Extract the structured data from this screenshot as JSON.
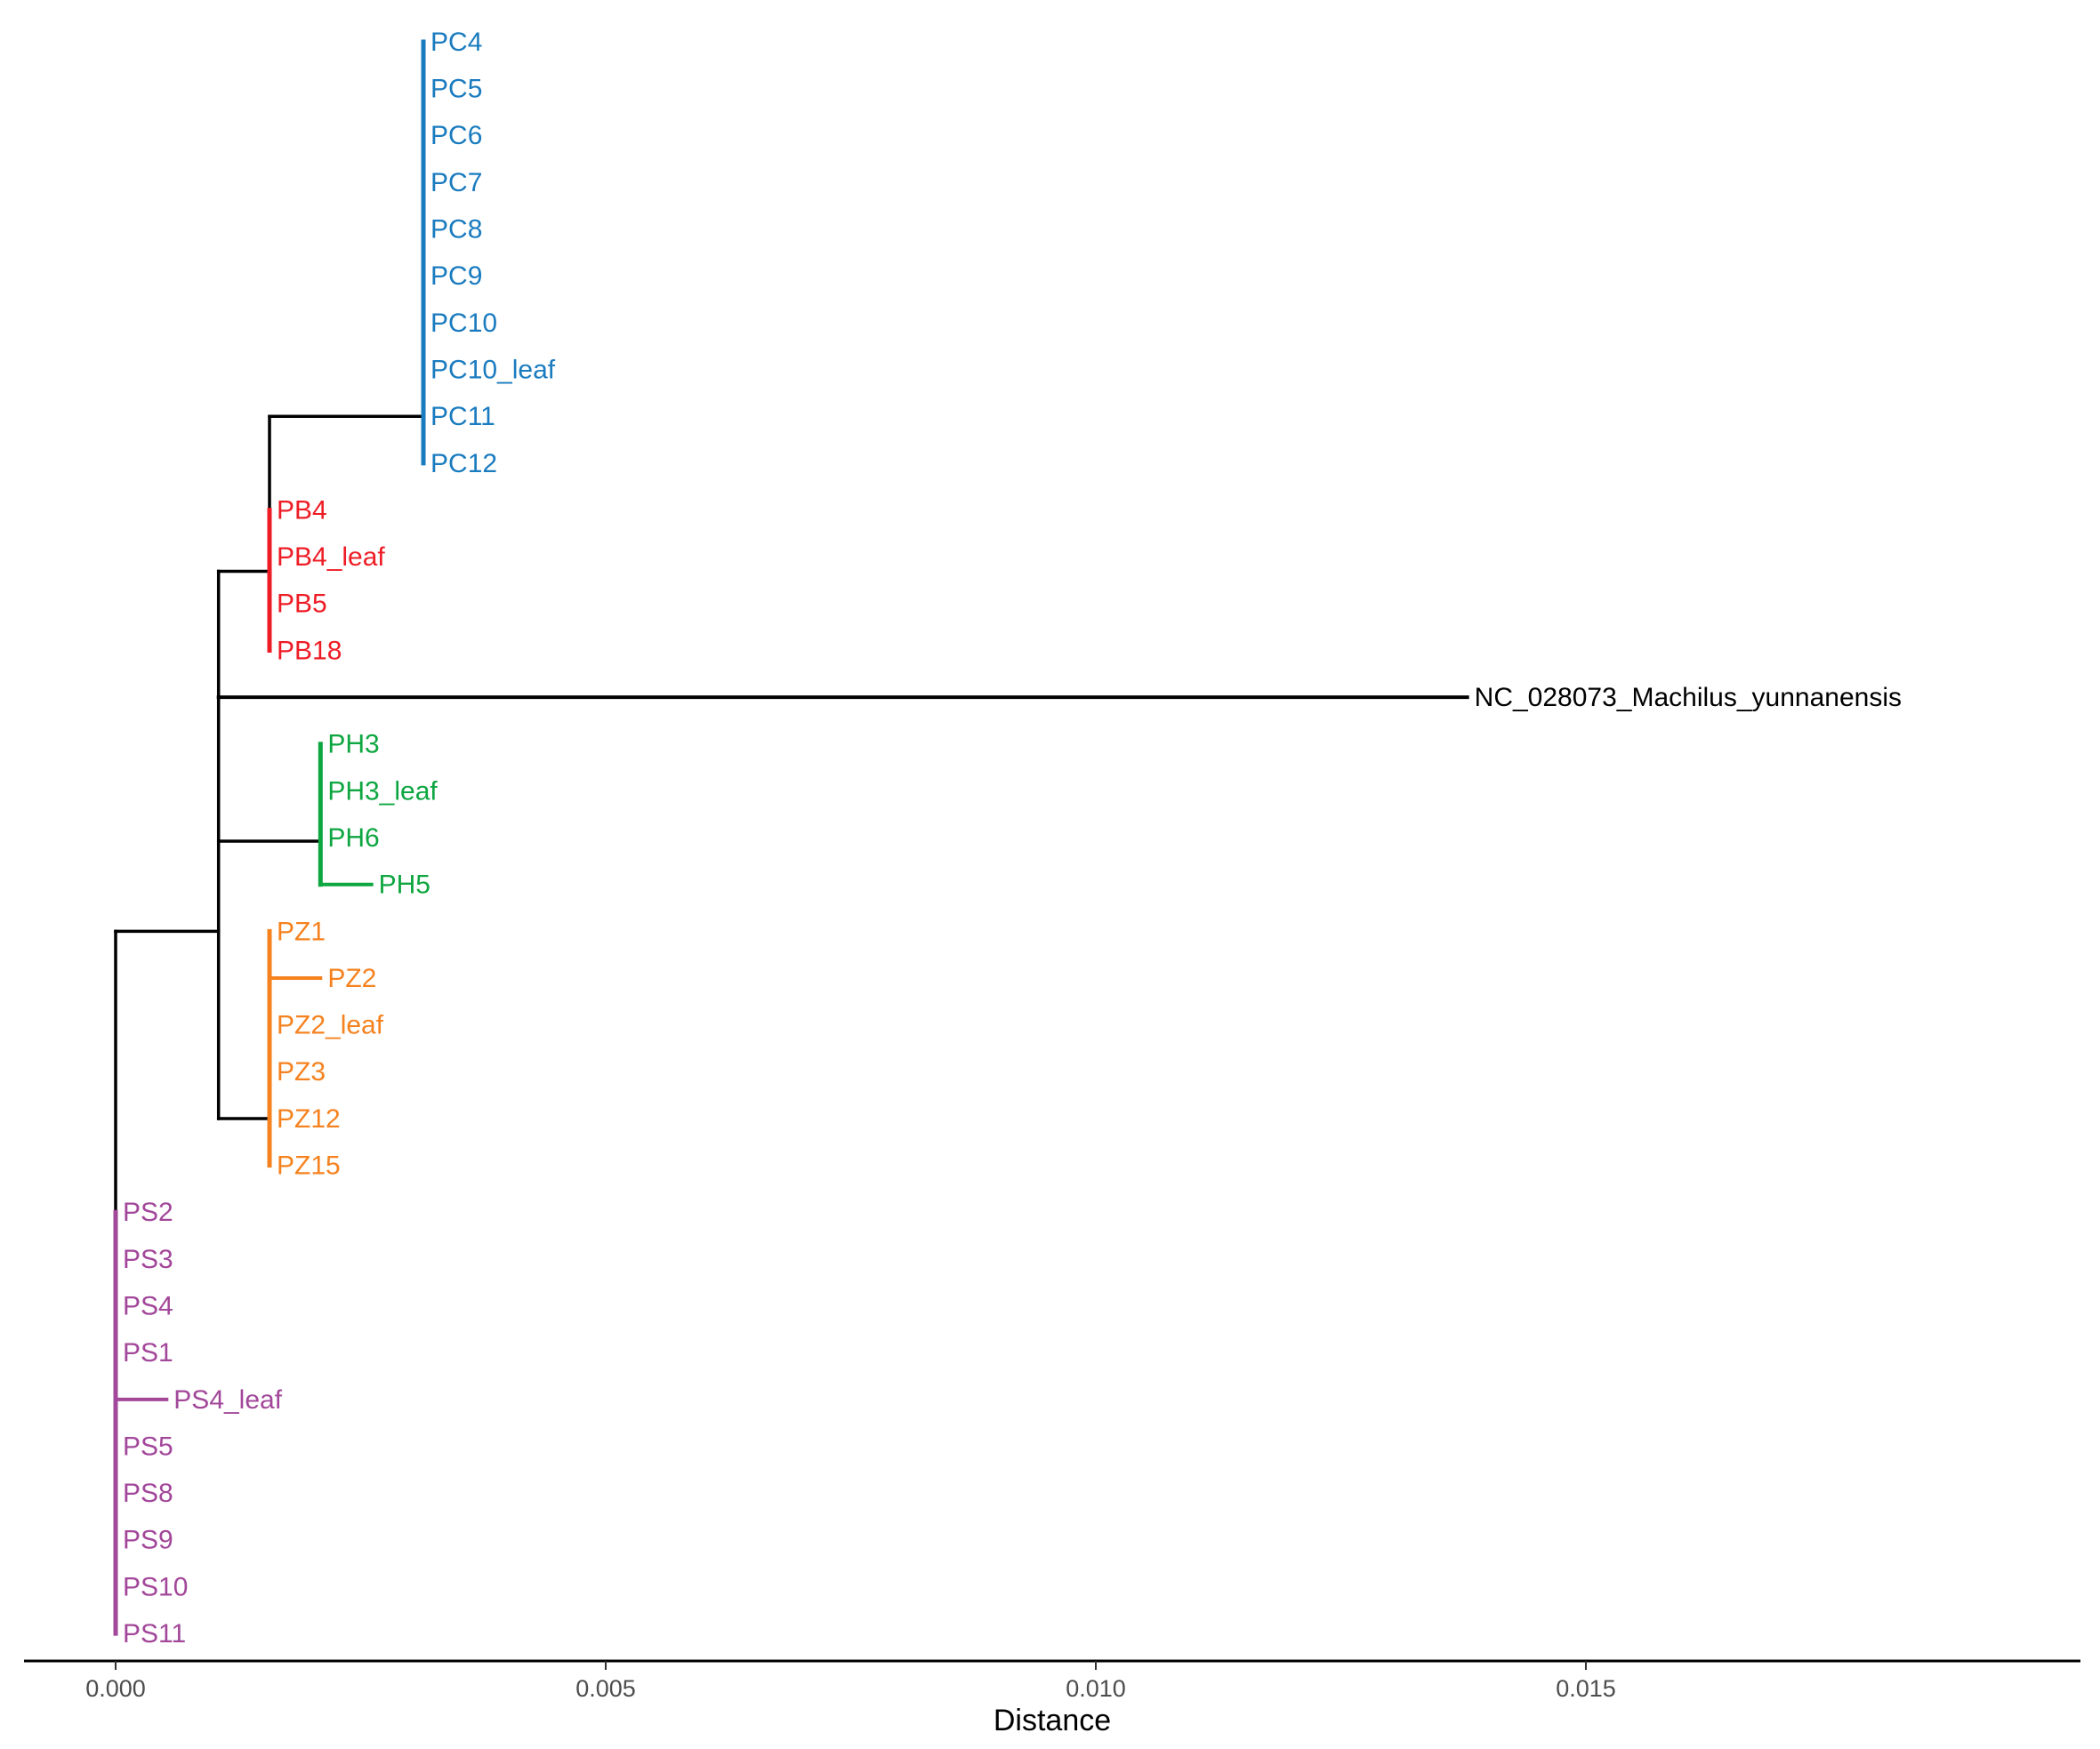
{
  "axis": {
    "title": "Distance",
    "ticks": [
      {
        "value": 0.0,
        "label": "0.000"
      },
      {
        "value": 0.005,
        "label": "0.005"
      },
      {
        "value": 0.01,
        "label": "0.010"
      },
      {
        "value": 0.015,
        "label": "0.015"
      }
    ]
  },
  "colors": {
    "PC": "#1a7bbf",
    "PB": "#ee1c25",
    "PH": "#0ea640",
    "PZ": "#f5821f",
    "PS": "#a2479a",
    "outgroup": "#000000",
    "internal": "#000000"
  },
  "tree": {
    "leaves": [
      {
        "name": "PC4",
        "clade": "PC",
        "distance": 0.00314
      },
      {
        "name": "PC5",
        "clade": "PC",
        "distance": 0.00314
      },
      {
        "name": "PC6",
        "clade": "PC",
        "distance": 0.00314
      },
      {
        "name": "PC7",
        "clade": "PC",
        "distance": 0.00314
      },
      {
        "name": "PC8",
        "clade": "PC",
        "distance": 0.00314
      },
      {
        "name": "PC9",
        "clade": "PC",
        "distance": 0.00314
      },
      {
        "name": "PC10",
        "clade": "PC",
        "distance": 0.00314
      },
      {
        "name": "PC10_leaf",
        "clade": "PC",
        "distance": 0.00314
      },
      {
        "name": "PC11",
        "clade": "PC",
        "distance": 0.00314
      },
      {
        "name": "PC12",
        "clade": "PC",
        "distance": 0.00314
      },
      {
        "name": "PB4",
        "clade": "PB",
        "distance": 0.00157
      },
      {
        "name": "PB4_leaf",
        "clade": "PB",
        "distance": 0.00157
      },
      {
        "name": "PB5",
        "clade": "PB",
        "distance": 0.00157
      },
      {
        "name": "PB18",
        "clade": "PB",
        "distance": 0.00157
      },
      {
        "name": "NC_028073_Machilus_yunnanensis",
        "clade": "outgroup",
        "distance": 0.01379
      },
      {
        "name": "PH3",
        "clade": "PH",
        "distance": 0.00209
      },
      {
        "name": "PH3_leaf",
        "clade": "PH",
        "distance": 0.00209
      },
      {
        "name": "PH6",
        "clade": "PH",
        "distance": 0.00209
      },
      {
        "name": "PH5",
        "clade": "PH",
        "distance": 0.00261
      },
      {
        "name": "PZ1",
        "clade": "PZ",
        "distance": 0.00157
      },
      {
        "name": "PZ2",
        "clade": "PZ",
        "distance": 0.00209
      },
      {
        "name": "PZ2_leaf",
        "clade": "PZ",
        "distance": 0.00157
      },
      {
        "name": "PZ3",
        "clade": "PZ",
        "distance": 0.00157
      },
      {
        "name": "PZ12",
        "clade": "PZ",
        "distance": 0.00157
      },
      {
        "name": "PZ15",
        "clade": "PZ",
        "distance": 0.00157
      },
      {
        "name": "PS2",
        "clade": "PS",
        "distance": 0.0
      },
      {
        "name": "PS3",
        "clade": "PS",
        "distance": 0.0
      },
      {
        "name": "PS4",
        "clade": "PS",
        "distance": 0.0
      },
      {
        "name": "PS1",
        "clade": "PS",
        "distance": 0.0
      },
      {
        "name": "PS4_leaf",
        "clade": "PS",
        "distance": 0.00052
      },
      {
        "name": "PS5",
        "clade": "PS",
        "distance": 0.0
      },
      {
        "name": "PS8",
        "clade": "PS",
        "distance": 0.0
      },
      {
        "name": "PS9",
        "clade": "PS",
        "distance": 0.0
      },
      {
        "name": "PS10",
        "clade": "PS",
        "distance": 0.0
      },
      {
        "name": "PS11",
        "clade": "PS",
        "distance": 0.0
      }
    ],
    "internal_nodes": {
      "root": 0.0,
      "ingroup": 0.00105,
      "PB_PC": 0.00157,
      "PH": 0.00209,
      "PZ": 0.00157,
      "PC": 0.00314,
      "PS": 0.0
    }
  }
}
